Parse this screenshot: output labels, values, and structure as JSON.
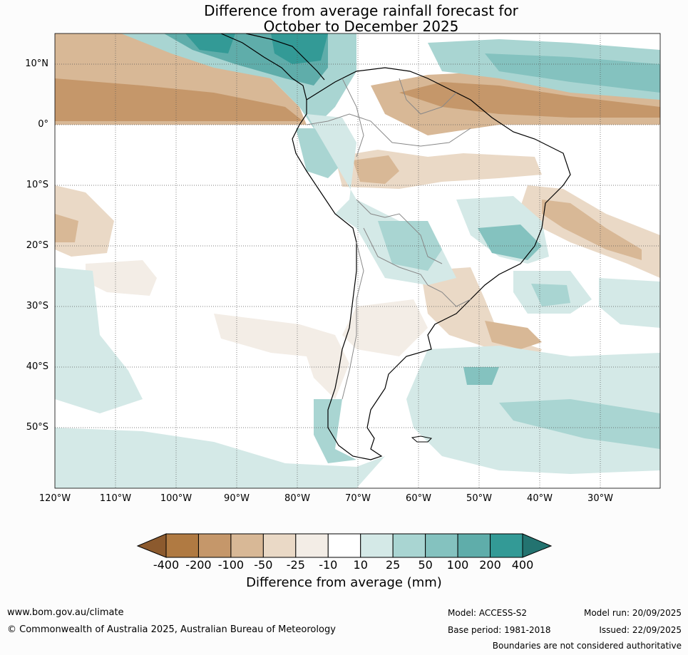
{
  "title": {
    "line1": "Difference from average rainfall forecast for",
    "line2": "October to December 2025"
  },
  "map": {
    "lat_labels": [
      "10°N",
      "0°",
      "10°S",
      "20°S",
      "30°S",
      "40°S",
      "50°S"
    ],
    "lon_labels": [
      "120°W",
      "110°W",
      "100°W",
      "90°W",
      "80°W",
      "70°W",
      "60°W",
      "50°W",
      "40°W",
      "30°W"
    ]
  },
  "colorbar": {
    "ticks": [
      "-400",
      "-200",
      "-100",
      "-50",
      "-25",
      "-10",
      "10",
      "25",
      "50",
      "100",
      "200",
      "400"
    ],
    "colors": [
      "#8c5a2e",
      "#b07a42",
      "#c5976a",
      "#d8b896",
      "#ead9c6",
      "#f3ede6",
      "#ffffff",
      "#d4e9e7",
      "#a9d5d2",
      "#84c2bf",
      "#5fadaa",
      "#339a96",
      "#237370"
    ],
    "label": "Difference from average (mm)"
  },
  "footer": {
    "website": "www.bom.gov.au/climate",
    "copyright": "© Commonwealth of Australia 2025, Australian Bureau of Meteorology",
    "model": "Model: ACCESS-S2",
    "base_period": "Base period: 1981-2018",
    "model_run": "Model run: 20/09/2025",
    "issued": "Issued: 22/09/2025",
    "disclaimer": "Boundaries are not considered authoritative"
  }
}
